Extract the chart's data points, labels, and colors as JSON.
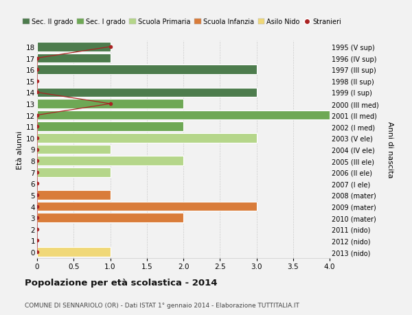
{
  "ages": [
    18,
    17,
    16,
    15,
    14,
    13,
    12,
    11,
    10,
    9,
    8,
    7,
    6,
    5,
    4,
    3,
    2,
    1,
    0
  ],
  "right_labels": [
    "1995 (V sup)",
    "1996 (IV sup)",
    "1997 (III sup)",
    "1998 (II sup)",
    "1999 (I sup)",
    "2000 (III med)",
    "2001 (II med)",
    "2002 (I med)",
    "2003 (V ele)",
    "2004 (IV ele)",
    "2005 (III ele)",
    "2006 (II ele)",
    "2007 (I ele)",
    "2008 (mater)",
    "2009 (mater)",
    "2010 (mater)",
    "2011 (nido)",
    "2012 (nido)",
    "2013 (nido)"
  ],
  "bar_values": [
    1,
    1,
    3,
    0,
    3,
    2,
    4,
    2,
    3,
    1,
    2,
    1,
    0,
    1,
    3,
    2,
    0,
    0,
    1
  ],
  "bar_colors": [
    "#4d7c4d",
    "#4d7c4d",
    "#4d7c4d",
    "#4d7c4d",
    "#4d7c4d",
    "#6ea855",
    "#6ea855",
    "#6ea855",
    "#b5d68a",
    "#b5d68a",
    "#b5d68a",
    "#b5d68a",
    "#b5d68a",
    "#d97c3a",
    "#d97c3a",
    "#d97c3a",
    "#f0d878",
    "#f0d878",
    "#f0d878"
  ],
  "stranieri_ages": [
    18,
    17,
    16,
    15,
    14,
    13,
    12,
    11,
    10,
    9,
    8,
    7,
    6,
    5,
    4,
    3,
    2,
    1,
    0
  ],
  "stranieri_xvals": [
    1,
    0,
    0,
    0,
    0,
    1,
    0,
    0,
    0,
    0,
    0,
    0,
    0,
    0,
    0,
    0,
    0,
    0,
    0
  ],
  "stranieri_color": "#aa2222",
  "legend_labels": [
    "Sec. II grado",
    "Sec. I grado",
    "Scuola Primaria",
    "Scuola Infanzia",
    "Asilo Nido",
    "Stranieri"
  ],
  "legend_colors": [
    "#4d7c4d",
    "#6ea855",
    "#b5d68a",
    "#d97c3a",
    "#f0d878",
    "#aa2222"
  ],
  "ylabel_left": "Età alunni",
  "ylabel_right": "Anni di nascita",
  "xlim": [
    0,
    4.0
  ],
  "ylim": [
    -0.55,
    18.55
  ],
  "xticks": [
    0,
    0.5,
    1.0,
    1.5,
    2.0,
    2.5,
    3.0,
    3.5,
    4.0
  ],
  "xtick_labels": [
    "0",
    "0.5",
    "1.0",
    "1.5",
    "2.0",
    "2.5",
    "3.0",
    "3.5",
    "4.0"
  ],
  "title": "Popolazione per età scolastica - 2014",
  "subtitle": "COMUNE DI SENNARIOLO (OR) - Dati ISTAT 1° gennaio 2014 - Elaborazione TUTTITALIA.IT",
  "bg_color": "#f2f2f2",
  "bar_edge_color": "#ffffff",
  "grid_color": "#cccccc"
}
